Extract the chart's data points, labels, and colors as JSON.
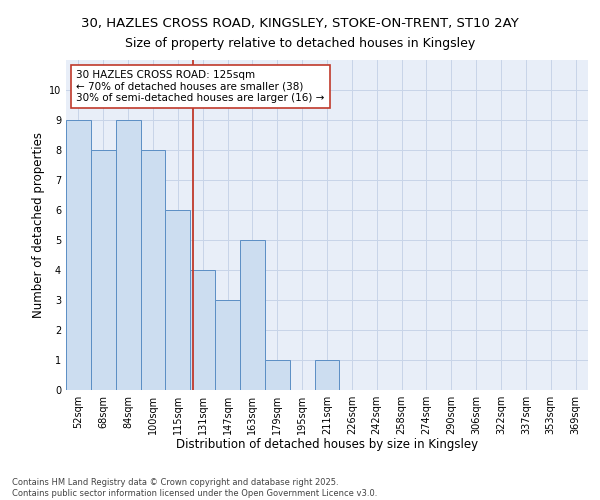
{
  "title1": "30, HAZLES CROSS ROAD, KINGSLEY, STOKE-ON-TRENT, ST10 2AY",
  "title2": "Size of property relative to detached houses in Kingsley",
  "xlabel": "Distribution of detached houses by size in Kingsley",
  "ylabel": "Number of detached properties",
  "categories": [
    "52sqm",
    "68sqm",
    "84sqm",
    "100sqm",
    "115sqm",
    "131sqm",
    "147sqm",
    "163sqm",
    "179sqm",
    "195sqm",
    "211sqm",
    "226sqm",
    "242sqm",
    "258sqm",
    "274sqm",
    "290sqm",
    "306sqm",
    "322sqm",
    "337sqm",
    "353sqm",
    "369sqm"
  ],
  "values": [
    9,
    8,
    9,
    8,
    6,
    4,
    3,
    5,
    1,
    0,
    1,
    0,
    0,
    0,
    0,
    0,
    0,
    0,
    0,
    0,
    0
  ],
  "bar_color": "#ccddf0",
  "bar_edge_color": "#5b8ec4",
  "vline_color": "#c0392b",
  "annotation_text": "30 HAZLES CROSS ROAD: 125sqm\n← 70% of detached houses are smaller (38)\n30% of semi-detached houses are larger (16) →",
  "annotation_box_color": "white",
  "annotation_box_edge_color": "#c0392b",
  "ylim": [
    0,
    11
  ],
  "yticks": [
    0,
    1,
    2,
    3,
    4,
    5,
    6,
    7,
    8,
    9,
    10,
    11
  ],
  "grid_color": "#c8d4e8",
  "bg_color": "#e8eef8",
  "footer1": "Contains HM Land Registry data © Crown copyright and database right 2025.",
  "footer2": "Contains public sector information licensed under the Open Government Licence v3.0.",
  "title_fontsize": 9.5,
  "subtitle_fontsize": 9,
  "axis_label_fontsize": 8.5,
  "tick_fontsize": 7,
  "annotation_fontsize": 7.5,
  "footer_fontsize": 6
}
